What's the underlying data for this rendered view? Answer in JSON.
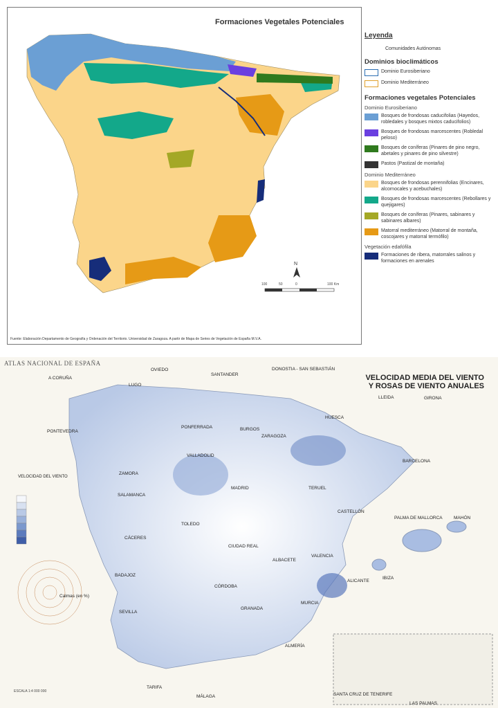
{
  "top_map": {
    "title": "Formaciones Vegetales Potenciales",
    "source": "Fuente: Elaboración Departamento de Geografía y Ordenación del Territorio. Universidad de Zaragoza. A partir de Mapa de Series de Vegetación de España M.V.A.",
    "scale_ticks": [
      "100",
      "50",
      "0",
      "100 Km"
    ],
    "legend": {
      "title": "Leyenda",
      "autonomies": "Comunidades Autónomas",
      "domains_heading": "Dominios bioclimáticos",
      "domains": [
        {
          "label": "Dominio Eurosiberiano",
          "color": "#2a6db2"
        },
        {
          "label": "Dominio Mediterráneo",
          "color": "#e0a02a"
        }
      ],
      "formations_heading": "Formaciones vegetales Potenciales",
      "euro_sub": "Dominio Eurosiberiano",
      "euro_items": [
        {
          "label": "Bosques de frondosas caducifolias (Hayedos, robledales y bosques mixtos caducifolios)",
          "color": "#6b9fd4"
        },
        {
          "label": "Bosques de frondosas marcescentes (Robledal peloso)",
          "color": "#6a3fe0"
        },
        {
          "label": "Bosques de coníferas (Pinares de pino negro, abetales y pinares de pino silvestre)",
          "color": "#2f7a1e"
        },
        {
          "label": "Pastos (Pastizal de montaña)",
          "color": "#333333"
        }
      ],
      "med_sub": "Dominio Mediterráneo",
      "med_items": [
        {
          "label": "Bosques de frondosas perennifolias (Encinares, alcornocales y acebuchales)",
          "color": "#fbd58a"
        },
        {
          "label": "Bosques de frondosas marcescentes (Rebollares y quejigares)",
          "color": "#13a88a"
        },
        {
          "label": "Bosques de coníferas (Pinares, sabinares y sabinares albares)",
          "color": "#a4a826"
        },
        {
          "label": "Matorral mediterráneo (Matorral de montaña, coscojares y matorral termófilo)",
          "color": "#e69a16"
        }
      ],
      "edaphic_sub": "Vegetación edafófila",
      "edaphic_items": [
        {
          "label": "Formaciones de ribera, matorrales salinos y formaciones en arenales",
          "color": "#162d7a"
        }
      ]
    },
    "colors": {
      "land": "#fbd58a",
      "atlantic": "#6b9fd4",
      "marc": "#13a88a",
      "conifer": "#a4a826",
      "scrub": "#e69a16",
      "water": "#162d7a"
    }
  },
  "bottom_map": {
    "atlas_label": "ATLAS NACIONAL DE ESPAÑA",
    "title_line1": "VELOCIDAD MEDIA DEL VIENTO",
    "title_line2": "Y ROSAS DE VIENTO ANUALES",
    "velocity_label": "VELOCIDAD DEL VIENTO",
    "calm_label": "Calmas (en %)",
    "scale_note": "ESCALA 1:4 000 000",
    "cities": [
      "A CORUÑA",
      "OVIEDO",
      "SANTANDER",
      "DONOSTIA - SAN SEBASTIÁN",
      "LUGO",
      "PONFERRADA",
      "BURGOS",
      "HUESCA",
      "LLEIDA",
      "GIRONA",
      "PONTEVEDRA",
      "ZARAGOZA",
      "BARCELONA",
      "VALLADOLID",
      "ZAMORA",
      "MADRID",
      "TERUEL",
      "SALAMANCA",
      "TOLEDO",
      "CASTELLÓN",
      "PALMA DE MALLORCA",
      "MAHÓN",
      "CÁCERES",
      "CIUDAD REAL",
      "VALENCIA",
      "IBIZA",
      "BADAJOZ",
      "ALBACETE",
      "ALICANTE",
      "CÓRDOBA",
      "MURCIA",
      "SEVILLA",
      "GRANADA",
      "ALMERÍA",
      "TARIFA",
      "MÁLAGA",
      "SANTA CRUZ DE TENERIFE",
      "LAS PALMAS"
    ]
  }
}
